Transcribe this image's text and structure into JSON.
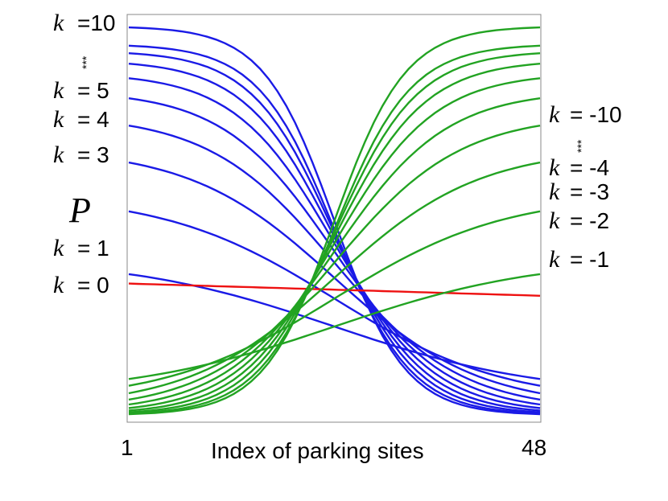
{
  "chart_data": {
    "type": "line",
    "xlabel": "Index of parking sites",
    "ylabel": "P",
    "xlim": [
      1,
      48
    ],
    "x_tick_labels": [
      "1",
      "48"
    ],
    "ylim": [
      0,
      1
    ],
    "grid": false,
    "colors": {
      "positive_k": "#1a1ae6",
      "zero_k": "#ee1111",
      "negative_k": "#22a322",
      "frame": "#888888"
    },
    "k_values": [
      10,
      9,
      8,
      7,
      6,
      5,
      4,
      3,
      2,
      1,
      0,
      -1,
      -2,
      -3,
      -4,
      -5,
      -6,
      -7,
      -8,
      -9,
      -10
    ],
    "curve_model": "logistic transition across sites centered near site 24; values read approximately from the plot",
    "left_labels": [
      {
        "k": "k",
        "text": "=10"
      },
      {
        "k": "k",
        "text": "=  5"
      },
      {
        "k": "k",
        "text": "=  4"
      },
      {
        "k": "k",
        "text": "=  3"
      },
      {
        "k": "k",
        "text": "=  1"
      },
      {
        "k": "k",
        "text": "=  0"
      }
    ],
    "right_labels": [
      {
        "k": "k",
        "text": "= -10"
      },
      {
        "k": "k",
        "text": "= -4"
      },
      {
        "k": "k",
        "text": "= -3"
      },
      {
        "k": "k",
        "text": "= -2"
      },
      {
        "k": "k",
        "text": "= -1"
      }
    ],
    "ellipsis": "***"
  }
}
